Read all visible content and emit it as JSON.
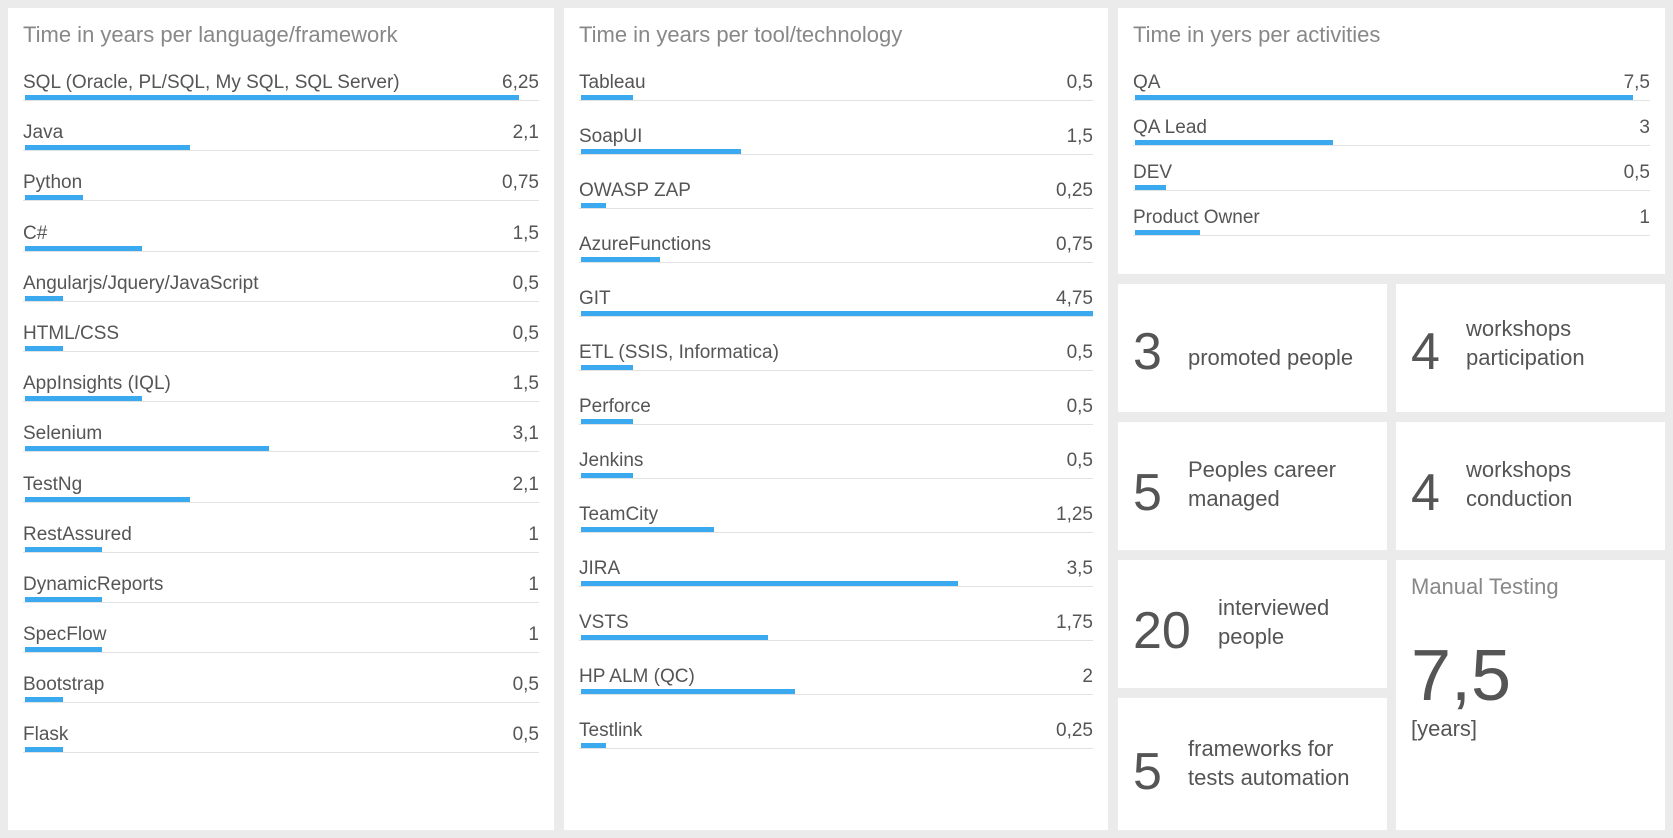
{
  "languages": {
    "title": "Time in years per language/framework",
    "max": 6.5,
    "items": [
      {
        "label": "SQL (Oracle, PL/SQL, My SQL, SQL Server)",
        "value": "6,25",
        "amount": 6.25
      },
      {
        "label": "Java",
        "value": "2,1",
        "amount": 2.1
      },
      {
        "label": "Python",
        "value": "0,75",
        "amount": 0.75
      },
      {
        "label": "C#",
        "value": "1,5",
        "amount": 1.5
      },
      {
        "label": "Angularjs/Jquery/JavaScript",
        "value": "0,5",
        "amount": 0.5
      },
      {
        "label": "HTML/CSS",
        "value": "0,5",
        "amount": 0.5
      },
      {
        "label": "AppInsights (IQL)",
        "value": "1,5",
        "amount": 1.5
      },
      {
        "label": "Selenium",
        "value": "3,1",
        "amount": 3.1
      },
      {
        "label": "TestNg",
        "value": "2,1",
        "amount": 2.1
      },
      {
        "label": "RestAssured",
        "value": "1",
        "amount": 1
      },
      {
        "label": "DynamicReports",
        "value": "1",
        "amount": 1
      },
      {
        "label": "SpecFlow",
        "value": "1",
        "amount": 1
      },
      {
        "label": "Bootstrap",
        "value": "0,5",
        "amount": 0.5
      },
      {
        "label": "Flask",
        "value": "0,5",
        "amount": 0.5
      }
    ]
  },
  "tools": {
    "title": "Time in years per tool/technology",
    "max": 4.75,
    "items": [
      {
        "label": "Tableau",
        "value": "0,5",
        "amount": 0.5
      },
      {
        "label": "SoapUI",
        "value": "1,5",
        "amount": 1.5
      },
      {
        "label": "OWASP ZAP",
        "value": "0,25",
        "amount": 0.25
      },
      {
        "label": "AzureFunctions",
        "value": "0,75",
        "amount": 0.75
      },
      {
        "label": "GIT",
        "value": "4,75",
        "amount": 4.75
      },
      {
        "label": "ETL (SSIS, Informatica)",
        "value": "0,5",
        "amount": 0.5
      },
      {
        "label": "Perforce",
        "value": "0,5",
        "amount": 0.5
      },
      {
        "label": "Jenkins",
        "value": "0,5",
        "amount": 0.5
      },
      {
        "label": "TeamCity",
        "value": "1,25",
        "amount": 1.25
      },
      {
        "label": "JIRA",
        "value": "3,5",
        "amount": 3.5
      },
      {
        "label": "VSTS",
        "value": "1,75",
        "amount": 1.75
      },
      {
        "label": "HP ALM (QC)",
        "value": "2",
        "amount": 2
      },
      {
        "label": "Testlink",
        "value": "0,25",
        "amount": 0.25
      }
    ]
  },
  "activities": {
    "title": "Time in yers per activities",
    "max": 7.75,
    "items": [
      {
        "label": "QA",
        "value": "7,5",
        "amount": 7.5
      },
      {
        "label": "QA Lead",
        "value": "3",
        "amount": 3
      },
      {
        "label": "DEV",
        "value": "0,5",
        "amount": 0.5
      },
      {
        "label": "Product Owner",
        "value": "1",
        "amount": 1
      }
    ]
  },
  "kpis": {
    "promoted": {
      "number": "3",
      "label": "promoted people"
    },
    "workshops_participation": {
      "number": "4",
      "label_line1": "workshops",
      "label_line2": "participation"
    },
    "career_managed": {
      "number": "5",
      "label_line1": "Peoples career",
      "label_line2": "managed"
    },
    "workshops_conduction": {
      "number": "4",
      "label_line1": "workshops",
      "label_line2": "conduction"
    },
    "interviewed": {
      "number": "20",
      "label_line1": "interviewed",
      "label_line2": "people"
    },
    "frameworks": {
      "number": "5",
      "label_line1": "frameworks for",
      "label_line2": "tests automation"
    }
  },
  "manual_testing": {
    "title": "Manual Testing",
    "value": "7,5",
    "unit": "[years]"
  },
  "colors": {
    "bar": "#3aa9f0",
    "background": "#ebebeb",
    "tile": "#ffffff"
  }
}
